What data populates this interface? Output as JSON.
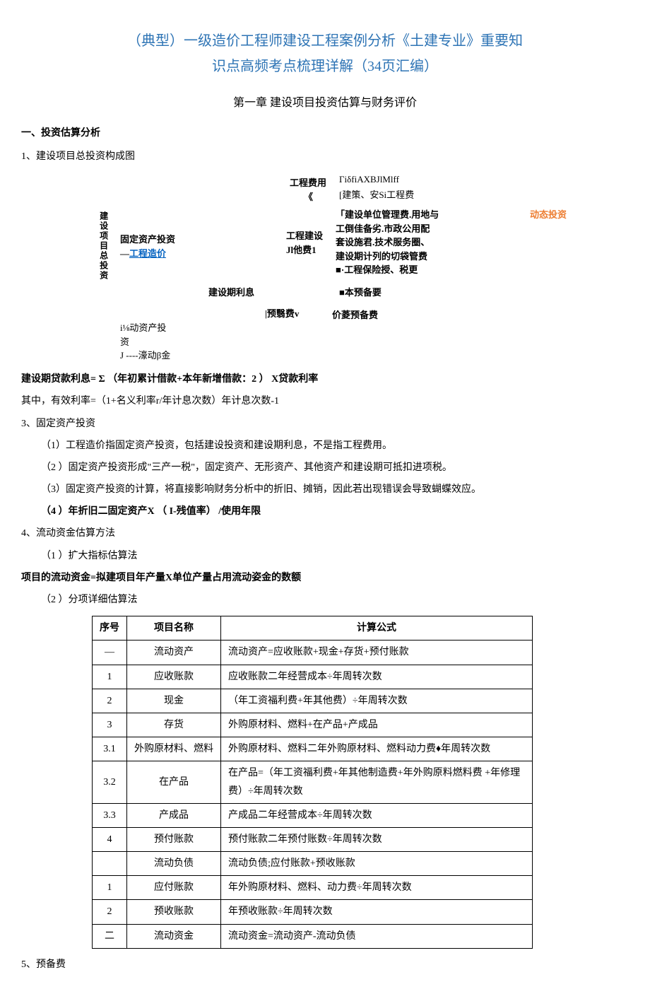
{
  "title_line1": "（典型）一级造价工程师建设工程案例分析《土建专业》重要知",
  "title_line2": "识点高频考点梳理详解（34页汇编）",
  "chapter": "第一章 建设项目投资估算与财务评价",
  "section1": "一、投资估算分析",
  "item1": "1、建设项目总投资构成图",
  "diagram": {
    "vlabel": "建设项目总投资",
    "fixed_asset_l1": "固定资产投资",
    "fixed_asset_l2_pre": "—",
    "fixed_asset_l2_link": "工程造价",
    "flow_asset_l1": "i⅛动资产投",
    "flow_asset_l2": "资",
    "flow_asset_l3": "J ----濠动β金",
    "const_interest": "建设期利息",
    "reserve": "|预翳费v",
    "proj_cost_l1": "工程费用",
    "proj_cost_l2": "《",
    "proj_other_l1": "工程建设",
    "proj_other_l2": "Jl他费1",
    "right1": "ΓiδfiAXBJlMlff",
    "right2": "[建策、安Si工程费",
    "right3_l1": "「建设单位管理费.用地与",
    "right3_l2": "工倒佳备劣.市政公用配",
    "right3_l3": "套设施君.技术服务圈、",
    "right3_l4": "建设期计列的切袋管费",
    "right3_l5": "■·工程保险授、税更",
    "right4": "■本预备要",
    "right5": "价菱预备费",
    "dynamic": "动态投资"
  },
  "formula1": "建设期贷款利息= Σ （年初累计借款+本年新增借款：2 ） X贷款利率",
  "formula1_note": "其中，有效利率=（1+名义利率r/年计息次数）年计息次数-1",
  "item3": "3、固定资产投资",
  "item3_1": "（1）工程造价指固定资产投资，包括建设投资和建设期利息，不是指工程费用。",
  "item3_2": "（2 ）固定资产投资形成\"三产一税\"，固定资产、无形资产、其他资产和建设期可抵扣进项税。",
  "item3_3": "（3）固定资产投资的计算，将直接影响财务分析中的折旧、摊销，因此若出现错误会导致蝴蝶效应。",
  "item3_4": "（4 ）年折旧二固定资产X （ I-残值率） /使用年限",
  "item4": "4、流动资金估算方法",
  "item4_1": "（1 ）扩大指标估算法",
  "formula2": "项目的流动资金=拟建项目年产量X单位产量占用流动姿金的数额",
  "item4_2": "（2 ）分项详细估算法",
  "table": {
    "headers": [
      "序号",
      "项目名称",
      "计算公式"
    ],
    "rows": [
      [
        "—",
        "流动资产",
        "流动资产=应收账款+现金+存货+预付账款"
      ],
      [
        "1",
        "应收账款",
        "应收账款二年经营成本÷年周转次数"
      ],
      [
        "2",
        "现金",
        "（年工资福利费+年其他费）÷年周转次数"
      ],
      [
        "3",
        "存货",
        "外购原材料、燃料+在产品+产成品"
      ],
      [
        "3.1",
        "外购原材料、燃料",
        "外购原材料、燃料二年外购原材料、燃料动力费♦年周转次数"
      ],
      [
        "3.2",
        "在产品",
        "在产品=（年工资福利费+年其他制造费+年外购原料燃料费 +年修理费）÷年周转次数"
      ],
      [
        "3.3",
        "产成品",
        "产成品二年经营成本÷年周转次数"
      ],
      [
        "4",
        "预付账款",
        "预付账款二年预付账数÷年周转次数"
      ],
      [
        "",
        "流动负债",
        "流动负债;应付账款+预收账款"
      ],
      [
        "1",
        "应付账款",
        "年外购原材料、燃料、动力费÷年周转次数"
      ],
      [
        "2",
        "预收账款",
        "年预收账款÷年周转次数"
      ],
      [
        "二",
        "流动资金",
        "流动资金=流动资产-流动负债"
      ]
    ]
  },
  "item5": "5、预备费"
}
